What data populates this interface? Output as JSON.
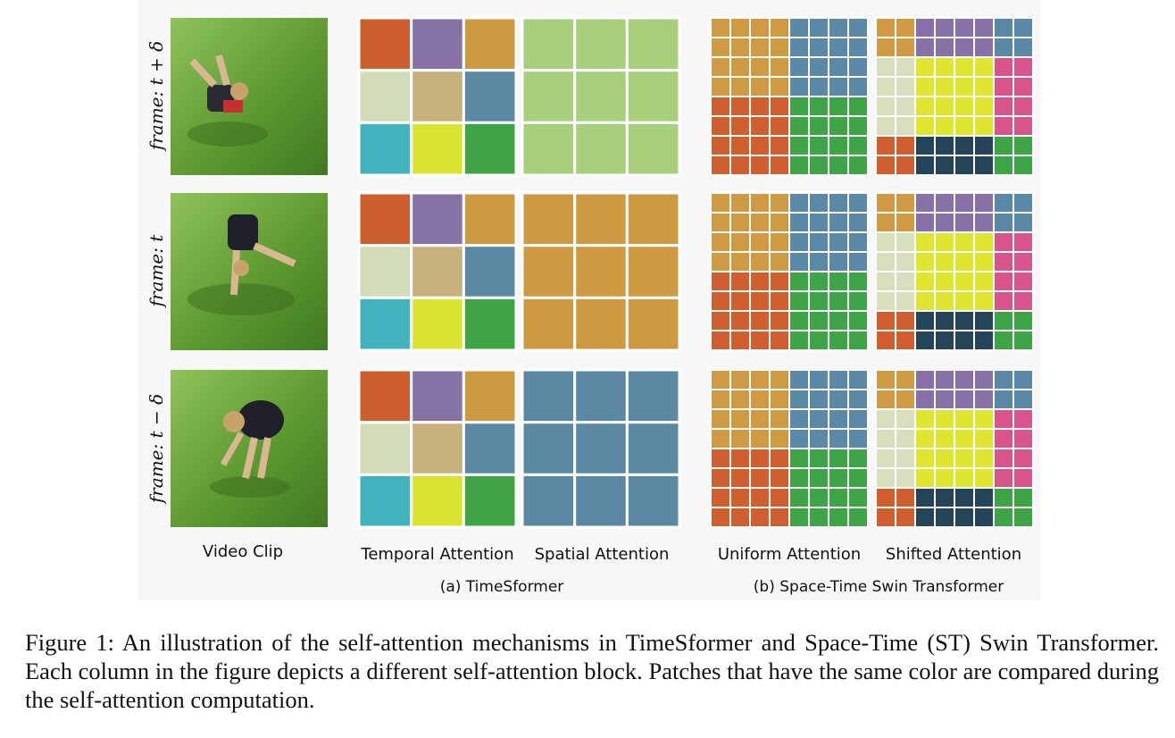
{
  "figure": {
    "row_labels": [
      "frame: t + δ",
      "frame: t",
      "frame: t − δ"
    ],
    "column_labels": {
      "video_clip": "Video Clip",
      "temporal": "Temporal Attention",
      "spatial": "Spatial Attention",
      "uniform": "Uniform Attention",
      "shifted": "Shifted Attention"
    },
    "group_labels": {
      "a": "(a) TimeSformer",
      "b": "(b) Space-Time Swin Transformer"
    },
    "colors": {
      "red": "#e0552e",
      "purple": "#8d6bb8",
      "orange": "#e09a45",
      "white": "#e8e8d0",
      "tan": "#d9b48a",
      "blue": "#5a86b8",
      "cyan": "#3bb7d6",
      "yellow": "#f0f030",
      "green": "#3aa64a",
      "lightgreen": "#b5d98a",
      "navy": "#1d3860",
      "pink": "#e84a9a",
      "grass": "#5e9a34"
    }
  },
  "caption": "Figure 1: An illustration of the self-attention mechanisms in TimeSformer and Space-Time (ST) Swin Transformer. Each column in the figure depicts a different self-attention block. Patches that have the same color are compared during the self-attention computation."
}
